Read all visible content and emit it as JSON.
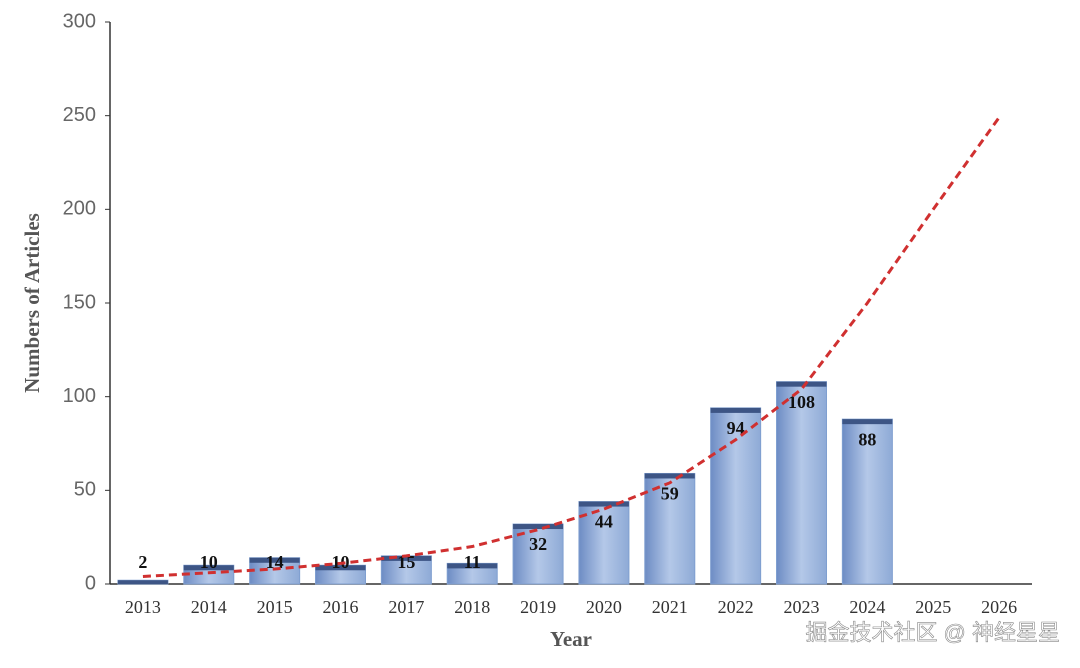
{
  "chart_data": {
    "type": "bar",
    "x_label": "Year",
    "y_label": "Numbers of Articles",
    "categories": [
      "2013",
      "2014",
      "2015",
      "2016",
      "2017",
      "2018",
      "2019",
      "2020",
      "2021",
      "2022",
      "2023",
      "2024",
      "2025",
      "2026"
    ],
    "values": [
      2,
      10,
      14,
      10,
      15,
      11,
      32,
      44,
      59,
      94,
      108,
      88,
      null,
      null
    ],
    "color": "#7f9fd0",
    "trend": {
      "color": "#d03030",
      "values": [
        4,
        6,
        8,
        11,
        15,
        20,
        29,
        40,
        54,
        77,
        104,
        150,
        200,
        249
      ]
    },
    "ylim": [
      0,
      300
    ],
    "yticks": [
      0,
      50,
      100,
      150,
      200,
      250,
      300
    ],
    "grid": false
  },
  "watermark": "掘金技术社区 @ 神经星星"
}
